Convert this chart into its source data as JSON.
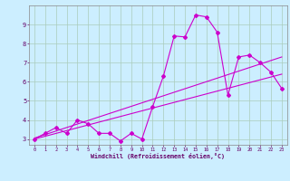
{
  "xlabel": "Windchill (Refroidissement éolien,°C)",
  "bg_color": "#cceeff",
  "grid_color": "#aaccbb",
  "line_color": "#cc00cc",
  "xlim": [
    -0.5,
    23.5
  ],
  "ylim": [
    2.7,
    10.0
  ],
  "xticks": [
    0,
    1,
    2,
    3,
    4,
    5,
    6,
    7,
    8,
    9,
    10,
    11,
    12,
    13,
    14,
    15,
    16,
    17,
    18,
    19,
    20,
    21,
    22,
    23
  ],
  "yticks": [
    3,
    4,
    5,
    6,
    7,
    8,
    9
  ],
  "series1_x": [
    0,
    1,
    2,
    3,
    4,
    5,
    6,
    7,
    8,
    9,
    10,
    11,
    12,
    13,
    14,
    15,
    16,
    17,
    18,
    19,
    20,
    21,
    22,
    23
  ],
  "series1_y": [
    3.0,
    3.3,
    3.6,
    3.3,
    4.0,
    3.8,
    3.3,
    3.3,
    2.9,
    3.3,
    3.0,
    4.7,
    6.3,
    8.4,
    8.35,
    9.5,
    9.4,
    8.6,
    5.3,
    7.3,
    7.4,
    7.0,
    6.5,
    5.65
  ],
  "series2_x": [
    0,
    23
  ],
  "series2_y": [
    3.0,
    6.4
  ],
  "series3_x": [
    0,
    23
  ],
  "series3_y": [
    3.05,
    7.3
  ]
}
